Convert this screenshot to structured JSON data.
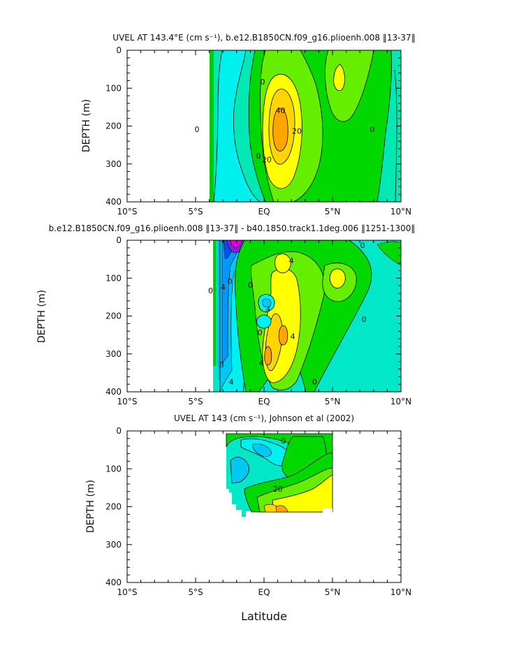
{
  "chart_data": [
    {
      "type": "contour",
      "title": "UVEL AT 143.4°E (cm s⁻¹), b.e12.B1850CN.f09_g16.plioenh.008 ‖13-37‖",
      "ylabel": "DEPTH (m)",
      "xlabel": "",
      "x_tick_labels": [
        "10°S",
        "5°S",
        "EQ",
        "5°N",
        "10°N"
      ],
      "y_tick_labels": [
        "0",
        "100",
        "200",
        "300",
        "400"
      ],
      "xlim": [
        -10,
        10
      ],
      "ylim": [
        400,
        0
      ],
      "contour_labels": [
        {
          "text": "40",
          "lat": 1.2,
          "depth": 160
        },
        {
          "text": "20",
          "lat": 2.4,
          "depth": 215
        },
        {
          "text": "0",
          "lat": -4.9,
          "depth": 210
        },
        {
          "text": "0",
          "lat": 7.9,
          "depth": 210
        },
        {
          "text": "0",
          "lat": -0.1,
          "depth": 85
        },
        {
          "text": "0",
          "lat": -0.4,
          "depth": 280
        },
        {
          "text": "20",
          "lat": 0.2,
          "depth": 290
        }
      ],
      "fields": [
        {
          "level": "15 to 40",
          "center_lat": 1.3,
          "center_depth": 200,
          "color": "#ffff00"
        },
        {
          "level": "> 40",
          "center_lat": 1.3,
          "center_depth": 190,
          "color": "#ffa500"
        },
        {
          "level": "10 to 20",
          "center_lat": 5.3,
          "center_depth": 80,
          "color": "#ffff00"
        }
      ]
    },
    {
      "type": "contour",
      "title": "b.e12.B1850CN.f09_g16.plioenh.008 ‖13-37‖ - b40.1850.track1.1deg.006 ‖1251-1300‖",
      "ylabel": "DEPTH (m)",
      "xlabel": "",
      "x_tick_labels": [
        "10°S",
        "5°S",
        "EQ",
        "5°N",
        "10°N"
      ],
      "y_tick_labels": [
        "0",
        "100",
        "200",
        "300",
        "400"
      ],
      "xlim": [
        -10,
        10
      ],
      "ylim": [
        400,
        0
      ],
      "contour_labels": [
        {
          "text": "4",
          "lat": 2.0,
          "depth": 55
        },
        {
          "text": "0",
          "lat": 7.2,
          "depth": 15
        },
        {
          "text": "0",
          "lat": -2.5,
          "depth": 110
        },
        {
          "text": "0",
          "lat": -1.0,
          "depth": 120
        },
        {
          "text": "4",
          "lat": 0.3,
          "depth": 183
        },
        {
          "text": "0",
          "lat": -0.3,
          "depth": 245
        },
        {
          "text": "4",
          "lat": 2.1,
          "depth": 255
        },
        {
          "text": "4",
          "lat": -0.2,
          "depth": 325
        },
        {
          "text": "0",
          "lat": 3.7,
          "depth": 375
        },
        {
          "text": "0",
          "lat": 7.3,
          "depth": 210
        },
        {
          "text": "4",
          "lat": -2.4,
          "depth": 375
        },
        {
          "text": "8",
          "lat": -3.1,
          "depth": 330
        },
        {
          "text": "4",
          "lat": -3.0,
          "depth": 125
        },
        {
          "text": "0",
          "lat": -3.9,
          "depth": 135
        }
      ]
    },
    {
      "type": "contour",
      "title": "UVEL AT 143 (cm s⁻¹), Johnson et al (2002)",
      "ylabel": "DEPTH (m)",
      "xlabel": "Latitude",
      "x_tick_labels": [
        "10°S",
        "5°S",
        "EQ",
        "5°N",
        "10°N"
      ],
      "y_tick_labels": [
        "0",
        "100",
        "200",
        "300",
        "400"
      ],
      "xlim": [
        -10,
        10
      ],
      "ylim": [
        400,
        0
      ],
      "contour_labels": [
        {
          "text": "20",
          "lat": 1.0,
          "depth": 155
        },
        {
          "text": "0",
          "lat": 1.4,
          "depth": 28
        }
      ]
    }
  ]
}
